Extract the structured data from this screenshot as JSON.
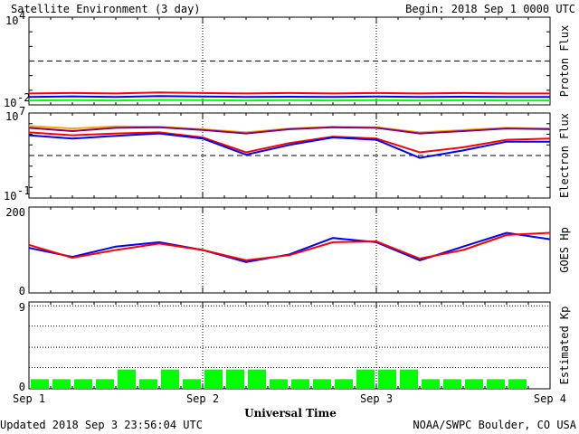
{
  "header": {
    "title": "Satellite Environment (3 day)",
    "begin": "Begin:  2018 Sep 1 0000 UTC"
  },
  "footer": {
    "updated": "Updated 2018 Sep  3 23:56:04 UTC",
    "credit": "NOAA/SWPC Boulder, CO USA"
  },
  "colors": {
    "red": "#ff0000",
    "blue": "#0000ff",
    "green": "#00ff00",
    "orange": "#ffa500",
    "purple": "#800080",
    "bar": "#00ff00"
  },
  "chart_data": [
    {
      "type": "line",
      "name": "proton",
      "ylabel": "Proton Flux",
      "scale": "log",
      "ylim": [
        0.01,
        10000
      ],
      "yticks": [
        {
          "base": "10",
          "exp": "4"
        },
        {
          "base": "10",
          "exp": "-2"
        }
      ],
      "threshold": 10,
      "x": [
        0,
        6,
        12,
        18,
        24,
        30,
        36,
        42,
        48,
        54,
        60,
        66,
        72
      ],
      "series": [
        {
          "color": "#ff0000",
          "values": [
            0.06,
            0.065,
            0.06,
            0.07,
            0.065,
            0.06,
            0.065,
            0.06,
            0.065,
            0.06,
            0.065,
            0.06,
            0.06
          ]
        },
        {
          "color": "#0000ff",
          "values": [
            0.035,
            0.038,
            0.035,
            0.04,
            0.037,
            0.035,
            0.036,
            0.035,
            0.037,
            0.035,
            0.036,
            0.035,
            0.035
          ]
        },
        {
          "color": "#00ff00",
          "values": [
            0.02,
            0.021,
            0.02,
            0.022,
            0.021,
            0.02,
            0.021,
            0.02,
            0.021,
            0.02,
            0.021,
            0.02,
            0.02
          ]
        }
      ]
    },
    {
      "type": "line",
      "name": "electron",
      "ylabel": "Electron Flux",
      "scale": "log",
      "ylim": [
        0.1,
        10000000
      ],
      "yticks": [
        {
          "base": "10",
          "exp": "7"
        },
        {
          "base": "10",
          "exp": "-1"
        }
      ],
      "threshold": 1000,
      "x": [
        0,
        6,
        12,
        18,
        24,
        30,
        36,
        42,
        48,
        54,
        60,
        66,
        72
      ],
      "series": [
        {
          "color": "#ffa500",
          "values": [
            600000,
            350000,
            550000,
            500000,
            300000,
            150000,
            350000,
            500000,
            450000,
            150000,
            250000,
            400000,
            350000
          ]
        },
        {
          "color": "#800080",
          "values": [
            400000,
            200000,
            400000,
            450000,
            250000,
            120000,
            300000,
            450000,
            400000,
            120000,
            200000,
            350000,
            300000
          ]
        },
        {
          "color": "#ff0000",
          "values": [
            150000,
            80000,
            120000,
            150000,
            50000,
            2000,
            15000,
            60000,
            40000,
            2000,
            6000,
            30000,
            40000
          ]
        },
        {
          "color": "#0000ff",
          "values": [
            80000,
            40000,
            70000,
            120000,
            40000,
            1200,
            10000,
            50000,
            30000,
            600,
            3000,
            20000,
            20000
          ]
        }
      ]
    },
    {
      "type": "line",
      "name": "hp",
      "ylabel": "GOES Hp",
      "scale": "linear",
      "ylim": [
        0,
        200
      ],
      "yticks": [
        "200",
        "0"
      ],
      "x": [
        0,
        6,
        12,
        18,
        24,
        30,
        36,
        42,
        48,
        54,
        60,
        66,
        72
      ],
      "series": [
        {
          "color": "#0000ff",
          "values": [
            105,
            84,
            108,
            118,
            100,
            72,
            90,
            128,
            118,
            76,
            108,
            140,
            125
          ]
        },
        {
          "color": "#ff0000",
          "values": [
            112,
            82,
            100,
            115,
            100,
            76,
            88,
            118,
            120,
            80,
            100,
            135,
            140
          ]
        }
      ]
    },
    {
      "type": "bar",
      "name": "kp",
      "ylabel": "Estimated Kp",
      "ylim": [
        0,
        9
      ],
      "yticks": [
        "9",
        "0"
      ],
      "gridlines": [
        2.2,
        4.3,
        6.5,
        8.6
      ],
      "values": [
        1,
        1,
        1,
        1,
        2,
        1,
        2,
        1,
        2,
        2,
        2,
        1,
        1,
        1,
        1,
        2,
        2,
        2,
        1,
        1,
        1,
        1,
        1,
        0
      ]
    }
  ],
  "xaxis": {
    "title": "Universal Time",
    "ticks": [
      "Sep 1",
      "Sep 2",
      "Sep 3",
      "Sep 4"
    ],
    "range_hours": [
      0,
      72
    ]
  }
}
